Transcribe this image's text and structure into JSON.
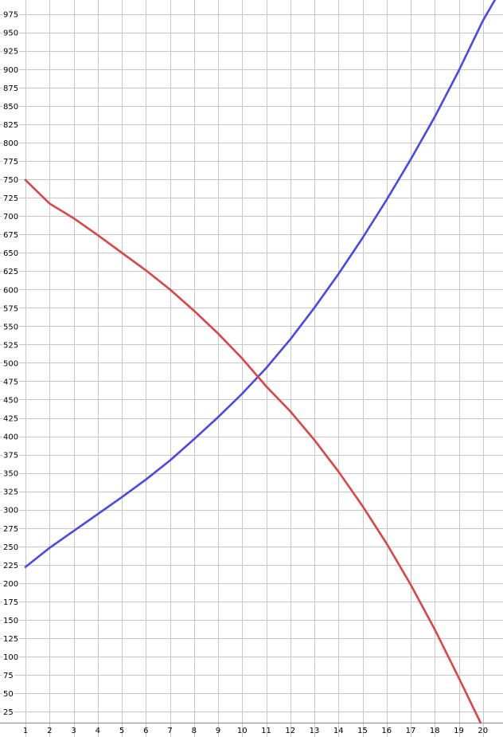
{
  "chart_data": {
    "type": "line",
    "title": "",
    "xlabel": "",
    "ylabel": "",
    "xlim": [
      1,
      20.6
    ],
    "ylim": [
      10,
      1000
    ],
    "grid": true,
    "x_ticks": [
      1,
      2,
      3,
      4,
      5,
      6,
      7,
      8,
      9,
      10,
      11,
      12,
      13,
      14,
      15,
      16,
      17,
      18,
      19,
      20
    ],
    "y_ticks": [
      25,
      50,
      75,
      100,
      125,
      150,
      175,
      200,
      225,
      250,
      275,
      300,
      325,
      350,
      375,
      400,
      425,
      450,
      475,
      500,
      525,
      550,
      575,
      600,
      625,
      650,
      675,
      700,
      725,
      750,
      775,
      800,
      825,
      850,
      875,
      900,
      925,
      950,
      975
    ],
    "series": [
      {
        "color": "#4848ee",
        "x": [
          1,
          2,
          3,
          4,
          5,
          6,
          7,
          8,
          9,
          10,
          11,
          12,
          13,
          14,
          15,
          16,
          17,
          18,
          19,
          20,
          20.6
        ],
        "values": [
          222,
          248,
          271,
          294,
          317,
          341,
          367,
          396,
          426,
          458,
          493,
          532,
          575,
          621,
          670,
          722,
          777,
          835,
          898,
          966,
          1000
        ]
      },
      {
        "color": "#dd4444",
        "x": [
          1,
          2,
          3,
          4,
          5,
          6,
          7,
          8,
          9,
          10,
          11,
          12,
          13,
          14,
          15,
          16,
          17,
          18,
          19,
          19.9
        ],
        "values": [
          749,
          717,
          697,
          674,
          650,
          626,
          600,
          571,
          540,
          506,
          468,
          434,
          395,
          352,
          305,
          254,
          198,
          137,
          71,
          10
        ]
      }
    ]
  }
}
